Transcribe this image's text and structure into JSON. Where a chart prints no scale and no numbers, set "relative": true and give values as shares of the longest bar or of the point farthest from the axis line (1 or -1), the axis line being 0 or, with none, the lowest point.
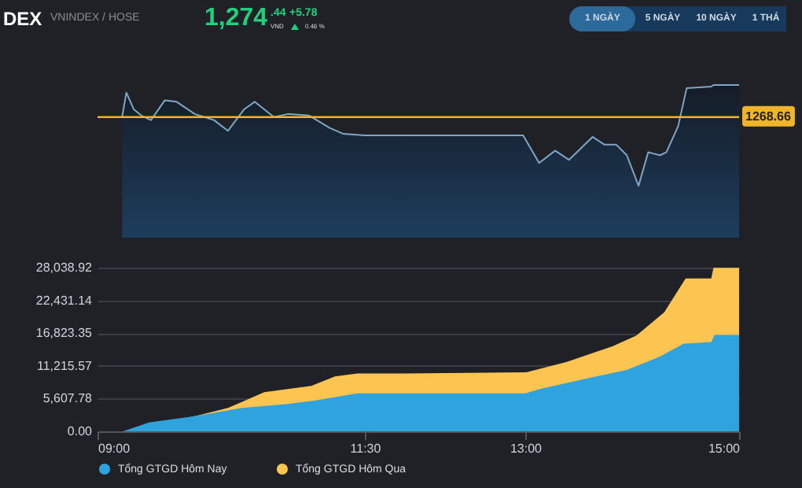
{
  "chart_data": [
    {
      "type": "other",
      "title": "DEX",
      "subtitle": "VNINDEX / HOSE",
      "annotations": [
        "1,274",
        ".44",
        "VND",
        "+5.78",
        "0.46 %",
        "1 NGÀY",
        "5 NGÀY",
        "10 NGÀY",
        "1 THÁ"
      ]
    },
    {
      "type": "area",
      "relative": true,
      "xlim": [
        9,
        15
      ],
      "series": [
        {
          "color": "#7fa6c6",
          "x": [
            9.23,
            9.27,
            9.34,
            9.41,
            9.5,
            9.63,
            9.74,
            9.91,
            10.09,
            10.22,
            10.37,
            10.47,
            10.65,
            10.78,
            10.98,
            11.17,
            11.3,
            11.5,
            12.98,
            13.13,
            13.28,
            13.41,
            13.63,
            13.74,
            13.85,
            13.95,
            14.06,
            14.15,
            14.26,
            14.32,
            14.43,
            14.51,
            14.74,
            14.76,
            15
          ],
          "values": [
            0.79,
            0.95,
            0.84,
            0.8,
            0.77,
            0.9,
            0.89,
            0.81,
            0.77,
            0.7,
            0.84,
            0.89,
            0.79,
            0.81,
            0.8,
            0.72,
            0.68,
            0.67,
            0.67,
            0.49,
            0.57,
            0.51,
            0.66,
            0.61,
            0.61,
            0.54,
            0.34,
            0.56,
            0.54,
            0.56,
            0.73,
            0.98,
            0.99,
            1,
            1
          ]
        }
      ],
      "ref_lines": [
        {
          "axis": "y",
          "value": 0.79,
          "color": "#f0b429"
        }
      ],
      "annotations": [
        "1268.66"
      ]
    },
    {
      "type": "area",
      "xlim": [
        9,
        15
      ],
      "ylim": [
        0,
        28038.92
      ],
      "xticks": [
        {
          "value": 9,
          "label": "09:00"
        },
        {
          "value": 11.5,
          "label": "11:30"
        },
        {
          "value": 13,
          "label": "13:00"
        },
        {
          "value": 15,
          "label": "15:00"
        }
      ],
      "yticks": [
        {
          "value": 0,
          "label": "0.00"
        },
        {
          "value": 5607.78,
          "label": "5,607.78"
        },
        {
          "value": 11215.57,
          "label": "11,215.57"
        },
        {
          "value": 16823.35,
          "label": "16,823.35"
        },
        {
          "value": 22431.14,
          "label": "22,431.14"
        },
        {
          "value": 28038.92,
          "label": "28,038.92"
        }
      ],
      "grid": "y",
      "legend": "bottom",
      "series": [
        {
          "name": "Tổng GTGD Hôm Nay",
          "color": "#2fa3de",
          "x": [
            9.24,
            9.48,
            9.91,
            10.35,
            10.78,
            11.04,
            11.43,
            11.87,
            13.0,
            13.13,
            13.61,
            13.95,
            14.26,
            14.48,
            14.74,
            14.77,
            15
          ],
          "values": [
            0,
            1500,
            2600,
            4000,
            4700,
            5300,
            6500,
            6500,
            6500,
            7200,
            9200,
            10500,
            12800,
            15000,
            15300,
            16500,
            16500
          ]
        },
        {
          "name": "Tổng GTGD Hôm Qua",
          "color": "#fcc451",
          "x": [
            9.24,
            9.91,
            10.22,
            10.56,
            11.0,
            11.22,
            11.43,
            11.87,
            13.01,
            13.39,
            13.82,
            14.04,
            14.3,
            14.5,
            14.74,
            14.76,
            15
          ],
          "values": [
            0,
            2600,
            4000,
            6700,
            7800,
            9400,
            9900,
            9900,
            10100,
            11900,
            14600,
            16400,
            20400,
            26200,
            26200,
            28000,
            28000
          ]
        }
      ]
    }
  ]
}
